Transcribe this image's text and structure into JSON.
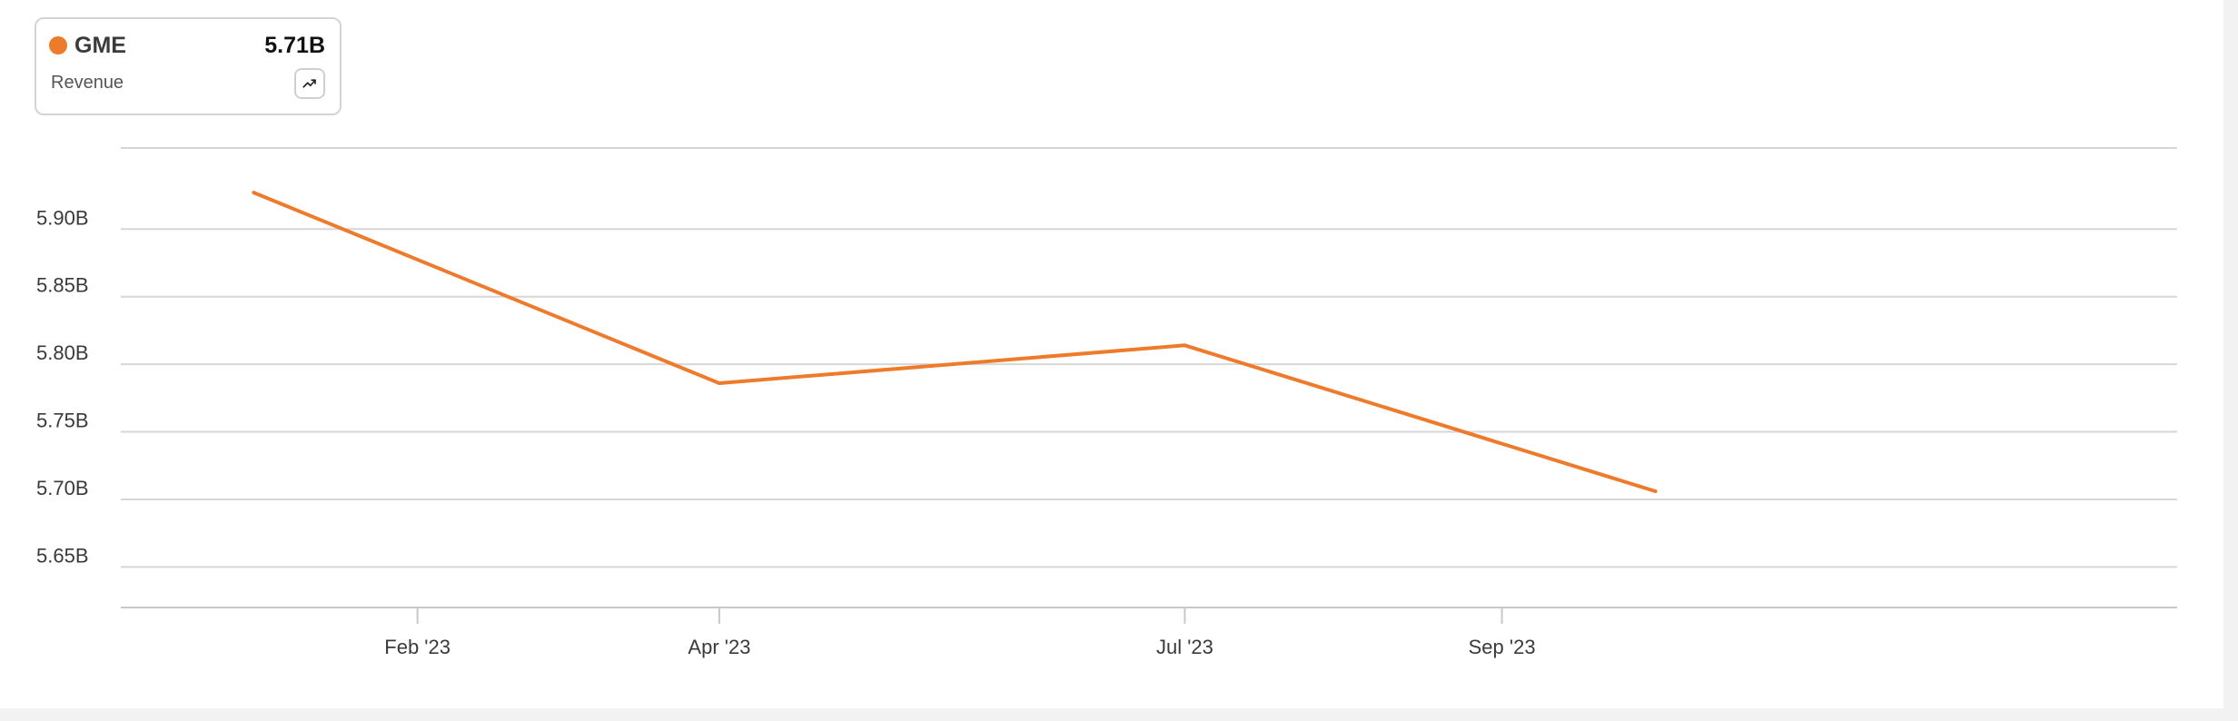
{
  "legend": {
    "ticker": "GME",
    "value": "5.71B",
    "metric": "Revenue",
    "button_icon": "trending-up-icon",
    "color": "#ee7b2c"
  },
  "chart_data": {
    "type": "line",
    "title": "",
    "xlabel": "",
    "ylabel": "",
    "series": [
      {
        "name": "GME",
        "color": "#ee7b2c",
        "points": [
          {
            "x": "2022-12-31",
            "y": 5.927
          },
          {
            "x": "2023-04-01",
            "y": 5.786
          },
          {
            "x": "2023-07-01",
            "y": 5.814
          },
          {
            "x": "2023-10-01",
            "y": 5.706
          }
        ]
      }
    ],
    "ylim": [
      5.62,
      5.96
    ],
    "xlim": [
      "2022-12-05",
      "2024-01-11"
    ],
    "y_ticks": [
      {
        "value": 5.9,
        "label": "5.90B"
      },
      {
        "value": 5.85,
        "label": "5.85B"
      },
      {
        "value": 5.8,
        "label": "5.80B"
      },
      {
        "value": 5.75,
        "label": "5.75B"
      },
      {
        "value": 5.7,
        "label": "5.70B"
      },
      {
        "value": 5.65,
        "label": "5.65B"
      }
    ],
    "x_ticks": [
      {
        "date": "2023-02-01",
        "label": "Feb '23"
      },
      {
        "date": "2023-04-01",
        "label": "Apr '23"
      },
      {
        "date": "2023-07-01",
        "label": "Jul '23"
      },
      {
        "date": "2023-09-01",
        "label": "Sep '23"
      }
    ],
    "grid": true,
    "legend_position": "top-left",
    "gridline_color": "#d6d6d6",
    "axis_color": "#c8c8c8"
  }
}
